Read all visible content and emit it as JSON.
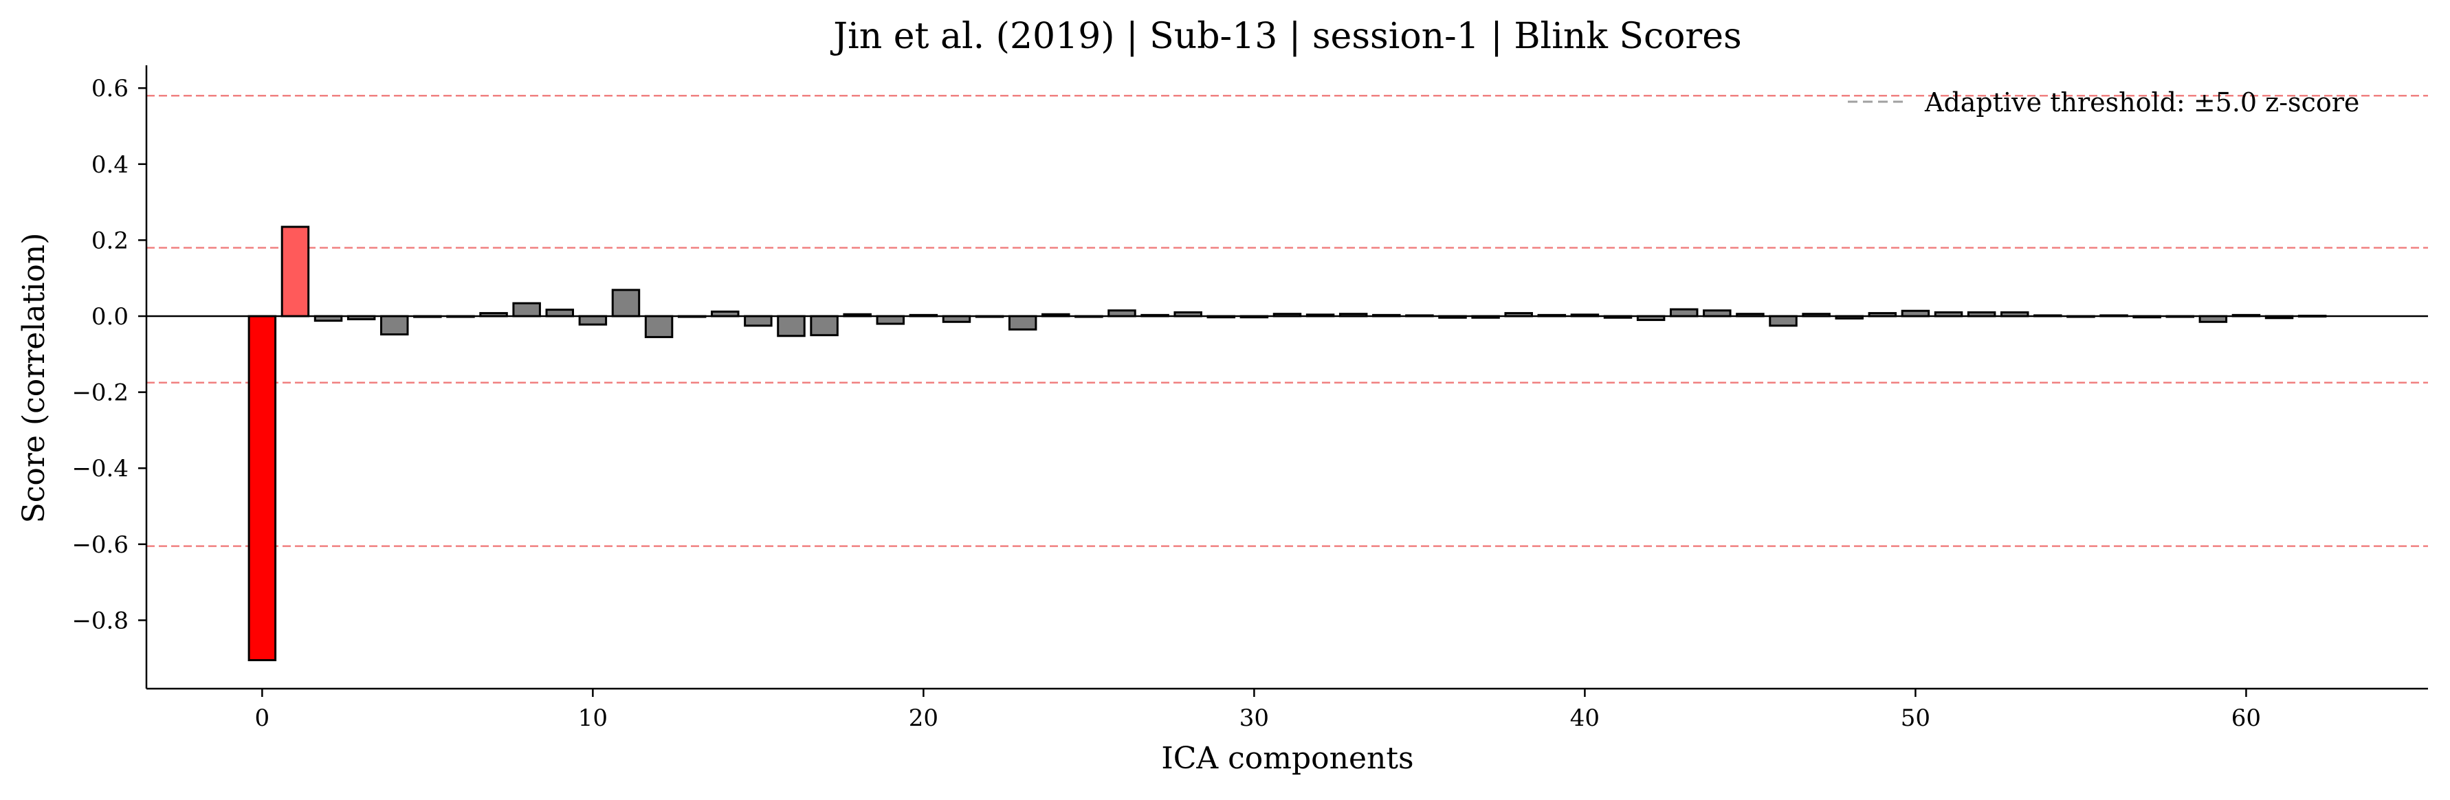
{
  "chart_data": {
    "type": "bar",
    "title": "Jin et al. (2019) | Sub-13 | session-1 | Blink Scores",
    "xlabel": "ICA components",
    "ylabel": "Score (correlation)",
    "xlim": [
      -3.5,
      65.5
    ],
    "ylim": [
      -0.98,
      0.66
    ],
    "xticks": [
      0,
      10,
      20,
      30,
      40,
      50,
      60
    ],
    "xtick_labels": [
      "0",
      "10",
      "20",
      "30",
      "40",
      "50",
      "60"
    ],
    "yticks": [
      -0.8,
      -0.6,
      -0.4,
      -0.2,
      0.0,
      0.2,
      0.4,
      0.6
    ],
    "ytick_labels": [
      "−0.8",
      "−0.6",
      "−0.4",
      "−0.2",
      "0.0",
      "0.2",
      "0.4",
      "0.6"
    ],
    "x": [
      0,
      1,
      2,
      3,
      4,
      5,
      6,
      7,
      8,
      9,
      10,
      11,
      12,
      13,
      14,
      15,
      16,
      17,
      18,
      19,
      20,
      21,
      22,
      23,
      24,
      25,
      26,
      27,
      28,
      29,
      30,
      31,
      32,
      33,
      34,
      35,
      36,
      37,
      38,
      39,
      40,
      41,
      42,
      43,
      44,
      45,
      46,
      47,
      48,
      49,
      50,
      51,
      52,
      53,
      54,
      55,
      56,
      57,
      58,
      59,
      60,
      61,
      62
    ],
    "values": [
      -0.905,
      0.235,
      -0.012,
      -0.008,
      -0.048,
      -0.002,
      0.0,
      0.008,
      0.034,
      0.017,
      -0.022,
      0.069,
      -0.055,
      0.0,
      0.012,
      -0.025,
      -0.052,
      -0.05,
      0.005,
      -0.02,
      0.003,
      -0.015,
      0.0,
      -0.035,
      0.005,
      0.0,
      0.015,
      0.003,
      0.01,
      -0.003,
      -0.003,
      0.006,
      0.004,
      0.006,
      0.003,
      0.002,
      -0.004,
      -0.004,
      0.008,
      0.003,
      0.004,
      -0.004,
      -0.01,
      0.018,
      0.015,
      0.006,
      -0.025,
      0.006,
      -0.006,
      0.008,
      0.014,
      0.01,
      0.01,
      0.01,
      0.002,
      0.0,
      0.002,
      -0.003,
      0.0,
      -0.015,
      0.003,
      -0.005,
      0.001
    ],
    "highlighted": {
      "indices": [
        0,
        1
      ],
      "colors": [
        "#ff0000",
        "#ff5a5a"
      ]
    },
    "bar_color": "#808080",
    "bar_edge_color": "#000000",
    "zero_line": 0.0,
    "threshold_lines": [
      0.58,
      0.18,
      -0.175,
      -0.605
    ],
    "threshold_color": "#f08080",
    "legend": {
      "label": "Adaptive threshold: ±5.0 z-score",
      "placement": "top-right",
      "line_color": "#a0a0a0"
    },
    "grid": false
  }
}
